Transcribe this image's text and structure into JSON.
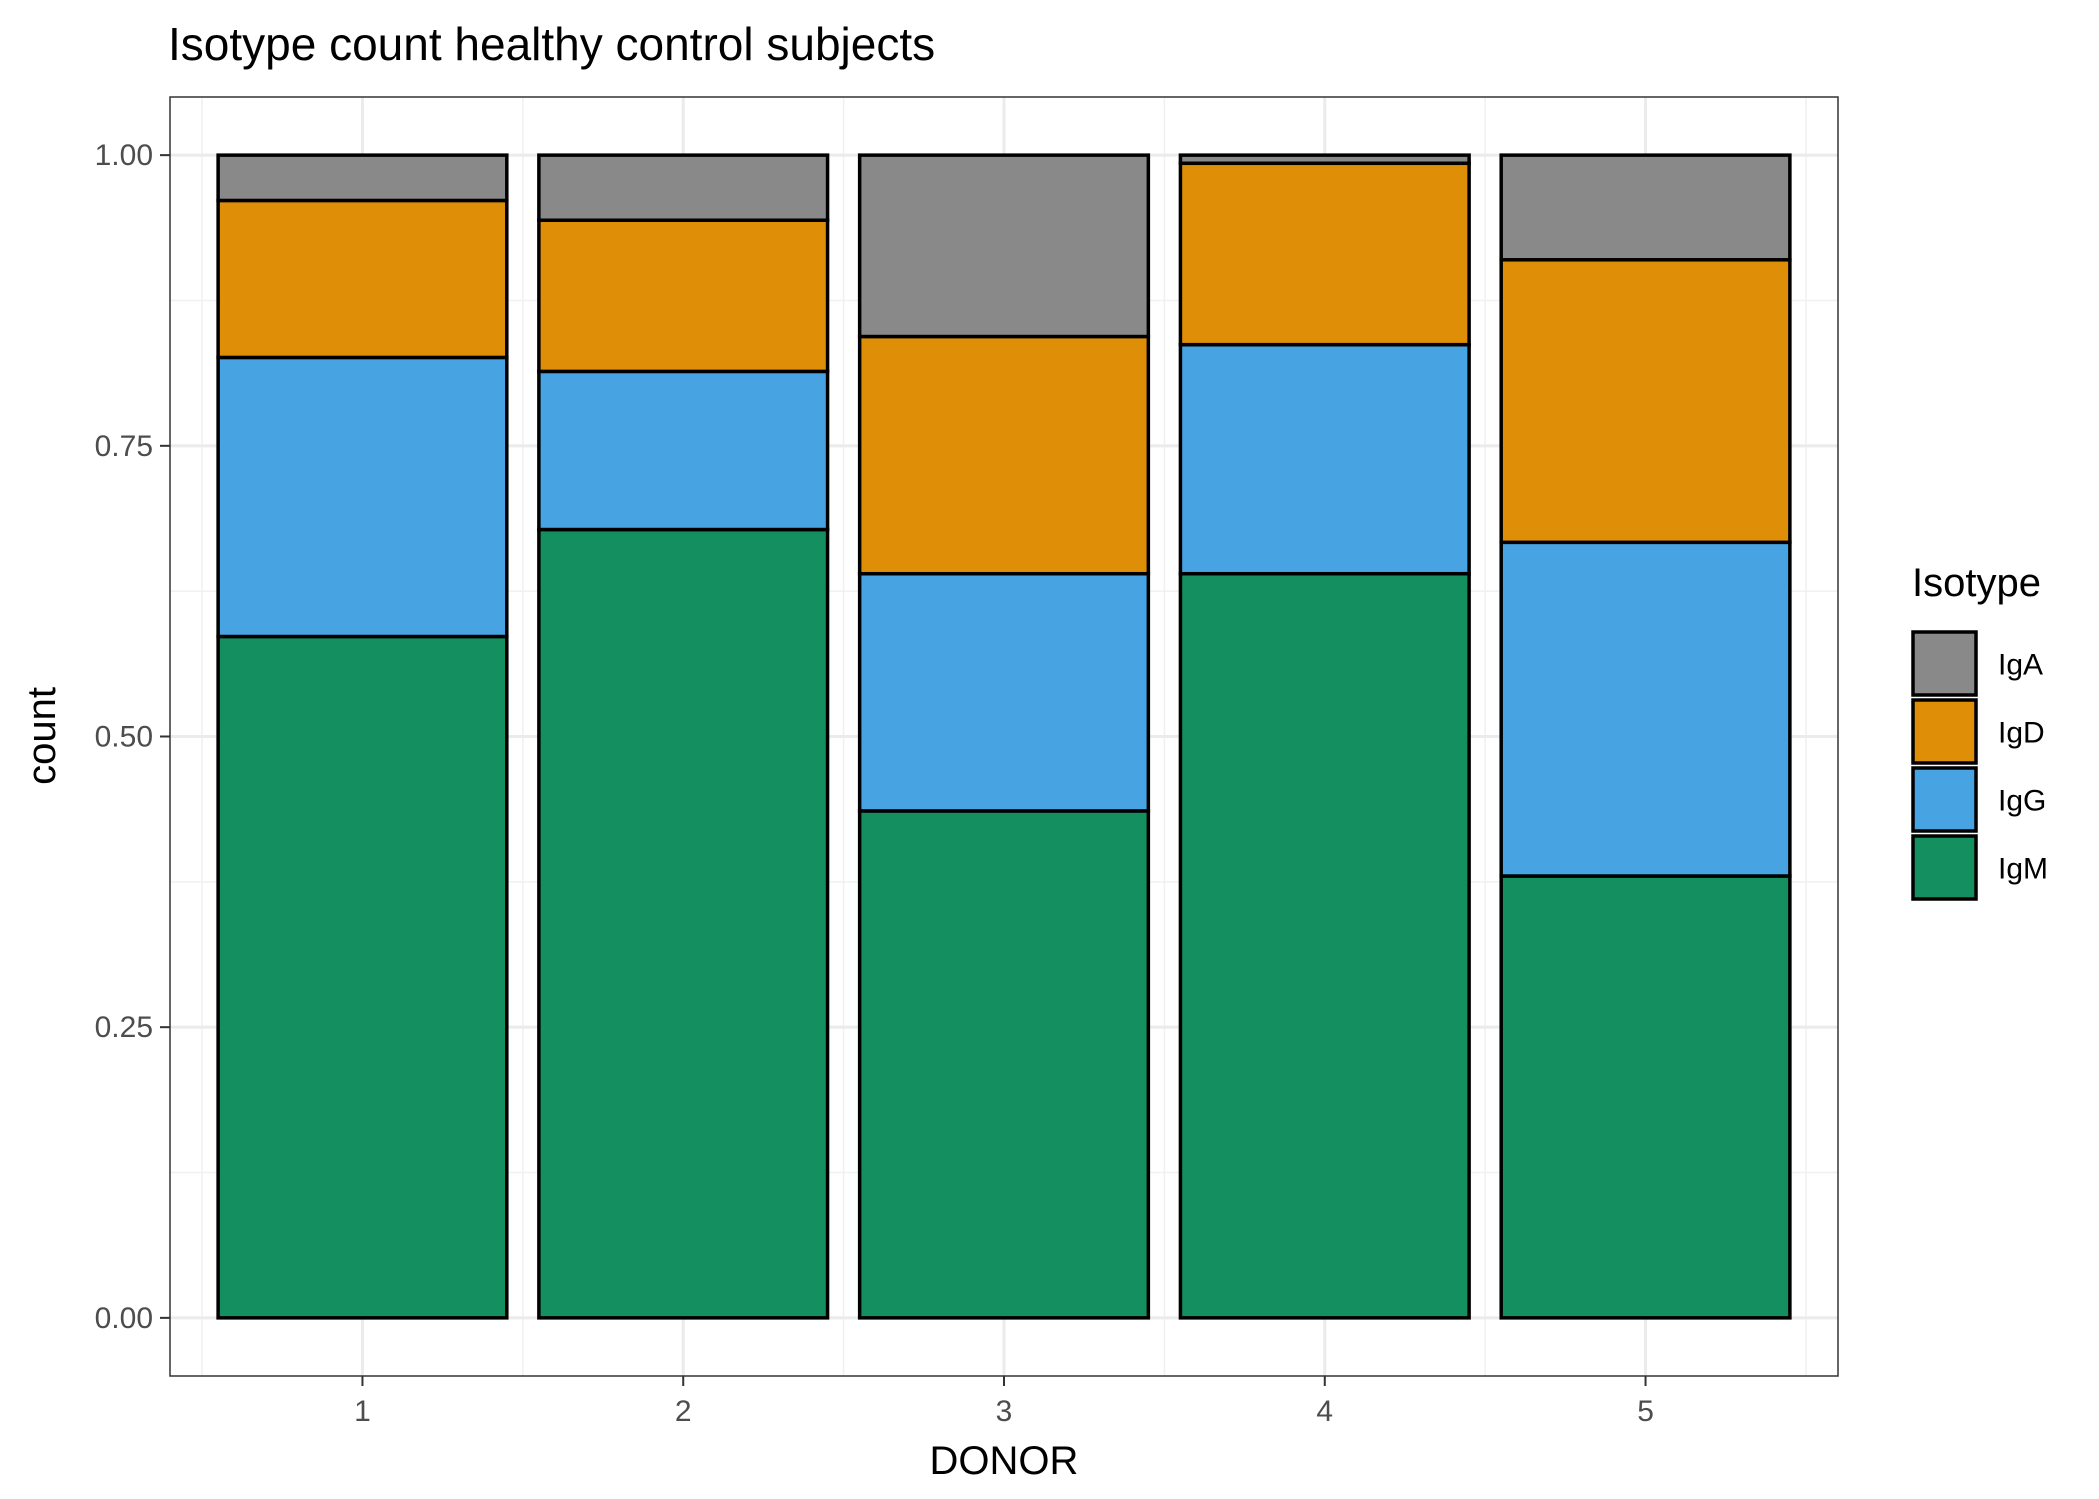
{
  "chart_data": {
    "type": "bar",
    "stacked": true,
    "title": "Isotype count healthy control subjects",
    "xlabel": "DONOR",
    "ylabel": "count",
    "categories": [
      "1",
      "2",
      "3",
      "4",
      "5"
    ],
    "ylim": [
      -0.05,
      1.05
    ],
    "yticks": [
      0,
      0.25,
      0.5,
      0.75,
      1
    ],
    "ytick_labels": [
      "0.00",
      "0.25",
      "0.50",
      "0.75",
      "1.00"
    ],
    "grid": true,
    "legend": {
      "title": "Isotype",
      "position": "right"
    },
    "series": [
      {
        "name": "IgM",
        "color": "#148F5F",
        "values": [
          0.586,
          0.678,
          0.436,
          0.64,
          0.38
        ]
      },
      {
        "name": "IgG",
        "color": "#47A3E2",
        "values": [
          0.24,
          0.136,
          0.204,
          0.197,
          0.287
        ]
      },
      {
        "name": "IgD",
        "color": "#DF8E08",
        "values": [
          0.135,
          0.13,
          0.204,
          0.156,
          0.243
        ]
      },
      {
        "name": "IgA",
        "color": "#898989",
        "values": [
          0.039,
          0.056,
          0.156,
          0.007,
          0.09
        ]
      }
    ],
    "legend_order": [
      "IgA",
      "IgD",
      "IgG",
      "IgM"
    ]
  }
}
